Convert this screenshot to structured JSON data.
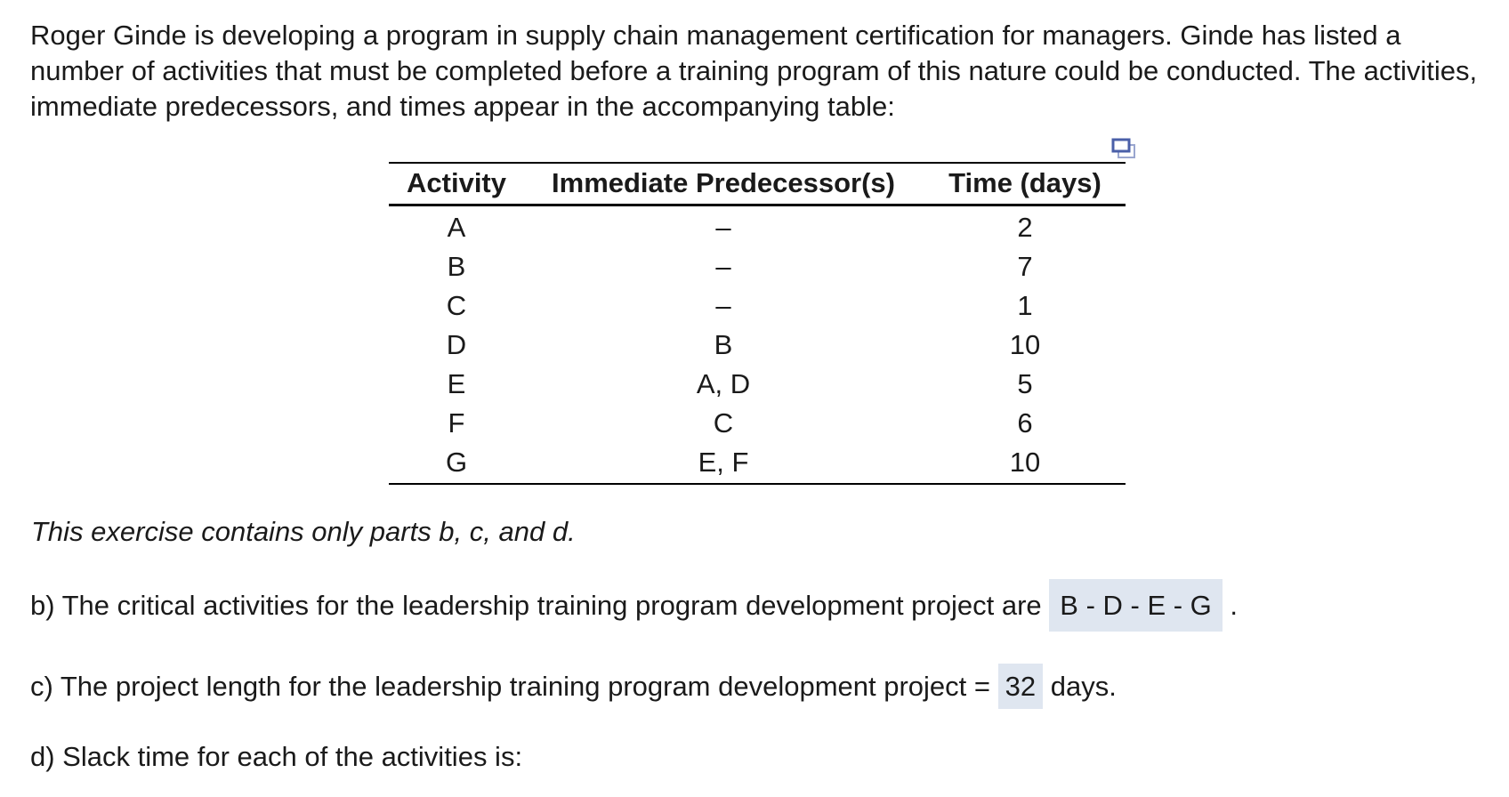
{
  "intro": "Roger Ginde is developing a program in supply chain management certification for managers. Ginde has listed a number of activities that must be completed before a training program of this nature could be conducted. The activities, immediate predecessors, and times appear in the accompanying table:",
  "expand_icon": "expand-window-icon",
  "table": {
    "headers": [
      "Activity",
      "Immediate Predecessor(s)",
      "Time (days)"
    ],
    "rows": [
      [
        "A",
        "–",
        "2"
      ],
      [
        "B",
        "–",
        "7"
      ],
      [
        "C",
        "–",
        "1"
      ],
      [
        "D",
        "B",
        "10"
      ],
      [
        "E",
        "A, D",
        "5"
      ],
      [
        "F",
        "C",
        "6"
      ],
      [
        "G",
        "E, F",
        "10"
      ]
    ]
  },
  "note": "This exercise contains only parts b, c, and d.",
  "part_b": {
    "prefix": "b) The critical activities for the leadership training program development project are",
    "answer": "B - D - E - G",
    "suffix": "."
  },
  "part_c": {
    "prefix": "c) The project length for the leadership training program development project =",
    "answer": "32",
    "suffix": "days."
  },
  "part_d": {
    "text": "d) Slack time for each of the activities is:"
  },
  "colors": {
    "answer_bg": "#dfe6f0",
    "icon": "#4a5fa8"
  }
}
